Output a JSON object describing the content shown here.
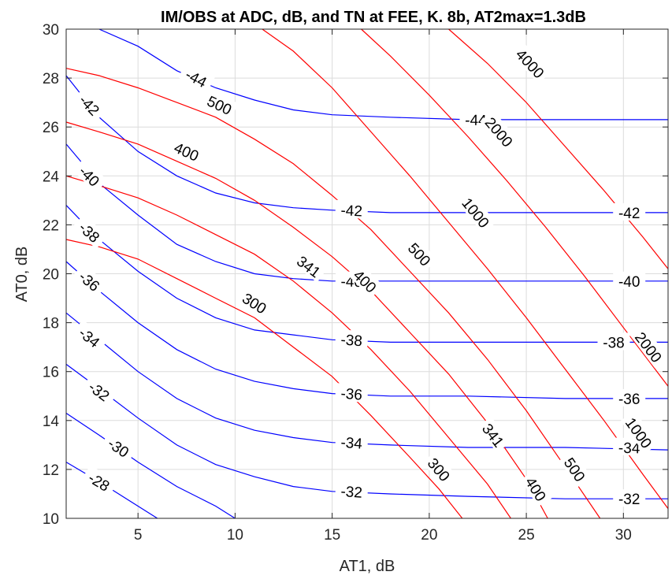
{
  "chart_data": {
    "type": "contour",
    "title": "IM/OBS at ADC, dB, and TN at FEE, K.  8b, AT2max=1.3dB",
    "xlabel": "AT1, dB",
    "ylabel": "AT0, dB",
    "xlim": [
      1.3,
      32.3
    ],
    "ylim": [
      10,
      30
    ],
    "x_ticks": [
      5,
      10,
      15,
      20,
      25,
      30
    ],
    "y_ticks": [
      10,
      12,
      14,
      16,
      18,
      20,
      22,
      24,
      26,
      28,
      30
    ],
    "grid": true,
    "colors": {
      "im_obs": "#0000ff",
      "tn": "#ff0000"
    },
    "series": [
      {
        "name": "IM/OBS at ADC, dB",
        "color": "#0000ff",
        "levels": [
          {
            "value": -28,
            "points": [
              [
                1.3,
                12.3
              ],
              [
                3.0,
                11.5
              ],
              [
                5.0,
                10.5
              ],
              [
                6.0,
                10.0
              ]
            ]
          },
          {
            "value": -30,
            "points": [
              [
                1.3,
                14.3
              ],
              [
                3.0,
                13.4
              ],
              [
                5.0,
                12.3
              ],
              [
                7.0,
                11.3
              ],
              [
                9.0,
                10.5
              ],
              [
                10.0,
                10.0
              ]
            ]
          },
          {
            "value": -32,
            "points": [
              [
                1.3,
                16.3
              ],
              [
                3.0,
                15.3
              ],
              [
                5.0,
                14.1
              ],
              [
                7.0,
                13.0
              ],
              [
                9.0,
                12.2
              ],
              [
                11.0,
                11.7
              ],
              [
                13.0,
                11.3
              ],
              [
                15.0,
                11.1
              ],
              [
                18.0,
                11.0
              ],
              [
                22.0,
                10.9
              ],
              [
                27.0,
                10.8
              ],
              [
                32.3,
                10.8
              ]
            ]
          },
          {
            "value": -34,
            "points": [
              [
                1.3,
                18.4
              ],
              [
                3.0,
                17.3
              ],
              [
                5.0,
                16.0
              ],
              [
                7.0,
                14.9
              ],
              [
                9.0,
                14.1
              ],
              [
                11.0,
                13.6
              ],
              [
                13.0,
                13.3
              ],
              [
                15.0,
                13.1
              ],
              [
                18.0,
                13.0
              ],
              [
                22.0,
                12.9
              ],
              [
                27.0,
                12.9
              ],
              [
                32.3,
                12.8
              ]
            ]
          },
          {
            "value": -36,
            "points": [
              [
                1.3,
                20.5
              ],
              [
                3.0,
                19.3
              ],
              [
                5.0,
                18.0
              ],
              [
                7.0,
                16.9
              ],
              [
                9.0,
                16.1
              ],
              [
                11.0,
                15.6
              ],
              [
                13.0,
                15.3
              ],
              [
                15.0,
                15.1
              ],
              [
                18.0,
                15.0
              ],
              [
                22.0,
                15.0
              ],
              [
                27.0,
                14.9
              ],
              [
                32.3,
                14.9
              ]
            ]
          },
          {
            "value": -38,
            "points": [
              [
                1.3,
                22.8
              ],
              [
                3.0,
                21.4
              ],
              [
                5.0,
                20.1
              ],
              [
                7.0,
                19.0
              ],
              [
                9.0,
                18.2
              ],
              [
                11.0,
                17.7
              ],
              [
                13.0,
                17.5
              ],
              [
                15.0,
                17.3
              ],
              [
                18.0,
                17.2
              ],
              [
                22.0,
                17.2
              ],
              [
                27.0,
                17.2
              ],
              [
                32.3,
                17.2
              ]
            ]
          },
          {
            "value": -40,
            "points": [
              [
                1.3,
                25.3
              ],
              [
                3.0,
                23.7
              ],
              [
                5.0,
                22.4
              ],
              [
                7.0,
                21.2
              ],
              [
                9.0,
                20.5
              ],
              [
                11.0,
                20.0
              ],
              [
                13.0,
                19.8
              ],
              [
                15.0,
                19.7
              ],
              [
                18.0,
                19.7
              ],
              [
                22.0,
                19.7
              ],
              [
                27.0,
                19.7
              ],
              [
                32.3,
                19.7
              ]
            ]
          },
          {
            "value": -42,
            "points": [
              [
                1.3,
                28.1
              ],
              [
                3.0,
                26.4
              ],
              [
                5.0,
                25.0
              ],
              [
                7.0,
                24.0
              ],
              [
                9.0,
                23.3
              ],
              [
                11.0,
                22.9
              ],
              [
                13.0,
                22.7
              ],
              [
                15.0,
                22.6
              ],
              [
                18.0,
                22.5
              ],
              [
                22.0,
                22.5
              ],
              [
                27.0,
                22.5
              ],
              [
                32.3,
                22.5
              ]
            ]
          },
          {
            "value": -44,
            "points": [
              [
                3.0,
                30.0
              ],
              [
                5.0,
                29.3
              ],
              [
                7.0,
                28.3
              ],
              [
                9.0,
                27.6
              ],
              [
                11.0,
                27.1
              ],
              [
                13.0,
                26.7
              ],
              [
                15.0,
                26.5
              ],
              [
                18.0,
                26.4
              ],
              [
                22.0,
                26.3
              ],
              [
                27.0,
                26.3
              ],
              [
                32.3,
                26.3
              ]
            ]
          }
        ]
      },
      {
        "name": "TN at FEE, K",
        "color": "#ff0000",
        "levels": [
          {
            "value": 300,
            "points": [
              [
                1.3,
                21.4
              ],
              [
                3.0,
                21.1
              ],
              [
                5.0,
                20.6
              ],
              [
                7.0,
                19.8
              ],
              [
                9.0,
                19.0
              ],
              [
                11.0,
                18.2
              ],
              [
                13.0,
                17.0
              ],
              [
                15.0,
                15.8
              ],
              [
                17.0,
                14.2
              ],
              [
                19.0,
                12.5
              ],
              [
                20.5,
                11.2
              ],
              [
                21.7,
                10.0
              ]
            ]
          },
          {
            "value": 341,
            "points": [
              [
                1.3,
                24.0
              ],
              [
                3.0,
                23.6
              ],
              [
                5.0,
                23.1
              ],
              [
                7.0,
                22.4
              ],
              [
                9.0,
                21.6
              ],
              [
                11.0,
                20.8
              ],
              [
                13.0,
                19.7
              ],
              [
                15.0,
                18.4
              ],
              [
                17.0,
                16.9
              ],
              [
                19.0,
                15.2
              ],
              [
                21.0,
                13.3
              ],
              [
                23.0,
                11.4
              ],
              [
                24.2,
                10.0
              ]
            ]
          },
          {
            "value": 400,
            "points": [
              [
                1.3,
                26.2
              ],
              [
                3.0,
                25.8
              ],
              [
                5.0,
                25.3
              ],
              [
                7.0,
                24.6
              ],
              [
                9.0,
                23.9
              ],
              [
                11.0,
                23.0
              ],
              [
                13.0,
                21.9
              ],
              [
                15.0,
                20.7
              ],
              [
                17.0,
                19.3
              ],
              [
                19.0,
                17.6
              ],
              [
                21.0,
                15.9
              ],
              [
                23.0,
                13.9
              ],
              [
                25.0,
                11.6
              ],
              [
                26.1,
                10.0
              ]
            ]
          },
          {
            "value": 500,
            "points": [
              [
                1.3,
                28.4
              ],
              [
                3.0,
                28.1
              ],
              [
                5.0,
                27.6
              ],
              [
                7.0,
                27.0
              ],
              [
                9.0,
                26.4
              ],
              [
                11.0,
                25.5
              ],
              [
                13.0,
                24.5
              ],
              [
                15.0,
                23.2
              ],
              [
                17.0,
                21.8
              ],
              [
                19.0,
                20.1
              ],
              [
                21.0,
                18.4
              ],
              [
                23.0,
                16.5
              ],
              [
                25.0,
                14.4
              ],
              [
                27.0,
                12.1
              ],
              [
                28.8,
                10.0
              ]
            ]
          },
          {
            "value": 1000,
            "points": [
              [
                11.4,
                30.0
              ],
              [
                13.0,
                29.1
              ],
              [
                15.0,
                27.6
              ],
              [
                17.0,
                25.8
              ],
              [
                19.0,
                24.0
              ],
              [
                21.0,
                22.1
              ],
              [
                23.0,
                20.2
              ],
              [
                25.0,
                18.2
              ],
              [
                27.0,
                16.1
              ],
              [
                29.0,
                14.0
              ],
              [
                31.0,
                11.8
              ],
              [
                32.3,
                10.4
              ]
            ]
          },
          {
            "value": 2000,
            "points": [
              [
                16.5,
                30.0
              ],
              [
                18.0,
                28.9
              ],
              [
                20.0,
                27.3
              ],
              [
                22.0,
                25.6
              ],
              [
                24.0,
                23.8
              ],
              [
                26.0,
                21.9
              ],
              [
                28.0,
                19.9
              ],
              [
                30.0,
                17.8
              ],
              [
                32.3,
                15.4
              ]
            ]
          },
          {
            "value": 4000,
            "points": [
              [
                21.0,
                30.0
              ],
              [
                23.0,
                28.6
              ],
              [
                25.0,
                27.0
              ],
              [
                27.0,
                25.2
              ],
              [
                29.0,
                23.4
              ],
              [
                31.0,
                21.5
              ],
              [
                32.3,
                20.2
              ]
            ]
          }
        ]
      }
    ],
    "labels": [
      {
        "text": "-28",
        "x": 3.0,
        "y": 11.5,
        "series": 0
      },
      {
        "text": "-30",
        "x": 4.0,
        "y": 12.9,
        "series": 0
      },
      {
        "text": "-32",
        "x": 3.0,
        "y": 15.2,
        "series": 0
      },
      {
        "text": "-32",
        "x": 16.0,
        "y": 11.1,
        "series": 0
      },
      {
        "text": "-32",
        "x": 30.3,
        "y": 10.8,
        "series": 0
      },
      {
        "text": "-34",
        "x": 2.5,
        "y": 17.4,
        "series": 0
      },
      {
        "text": "-34",
        "x": 16.0,
        "y": 13.1,
        "series": 0
      },
      {
        "text": "-34",
        "x": 30.3,
        "y": 12.9,
        "series": 0
      },
      {
        "text": "-36",
        "x": 2.5,
        "y": 19.7,
        "series": 0
      },
      {
        "text": "-36",
        "x": 16.0,
        "y": 15.1,
        "series": 0
      },
      {
        "text": "-36",
        "x": 30.3,
        "y": 14.9,
        "series": 0
      },
      {
        "text": "-38",
        "x": 2.5,
        "y": 21.7,
        "series": 0
      },
      {
        "text": "-38",
        "x": 16.0,
        "y": 17.3,
        "series": 0
      },
      {
        "text": "-38",
        "x": 29.5,
        "y": 17.2,
        "series": 0
      },
      {
        "text": "-40",
        "x": 2.5,
        "y": 24.0,
        "series": 0
      },
      {
        "text": "-40",
        "x": 16.0,
        "y": 19.7,
        "series": 0
      },
      {
        "text": "-40",
        "x": 30.3,
        "y": 19.7,
        "series": 0
      },
      {
        "text": "-42",
        "x": 2.5,
        "y": 26.9,
        "series": 0
      },
      {
        "text": "-42",
        "x": 16.0,
        "y": 22.6,
        "series": 0
      },
      {
        "text": "-42",
        "x": 30.3,
        "y": 22.5,
        "series": 0
      },
      {
        "text": "-44",
        "x": 8.0,
        "y": 28.0,
        "series": 0
      },
      {
        "text": "-44",
        "x": 22.4,
        "y": 26.3,
        "series": 0
      },
      {
        "text": "300",
        "x": 11.0,
        "y": 18.8,
        "series": 1
      },
      {
        "text": "300",
        "x": 20.5,
        "y": 12.0,
        "series": 1
      },
      {
        "text": "341",
        "x": 13.8,
        "y": 20.3,
        "series": 1
      },
      {
        "text": "341",
        "x": 23.3,
        "y": 13.4,
        "series": 1
      },
      {
        "text": "400",
        "x": 7.5,
        "y": 25.0,
        "series": 1
      },
      {
        "text": "400",
        "x": 16.7,
        "y": 19.7,
        "series": 1
      },
      {
        "text": "400",
        "x": 25.5,
        "y": 11.2,
        "series": 1
      },
      {
        "text": "500",
        "x": 9.2,
        "y": 26.9,
        "series": 1
      },
      {
        "text": "500",
        "x": 19.5,
        "y": 20.8,
        "series": 1
      },
      {
        "text": "500",
        "x": 27.5,
        "y": 12.0,
        "series": 1
      },
      {
        "text": "1000",
        "x": 22.4,
        "y": 22.5,
        "series": 1
      },
      {
        "text": "1000",
        "x": 30.8,
        "y": 13.5,
        "series": 1
      },
      {
        "text": "2000",
        "x": 23.6,
        "y": 25.8,
        "series": 1
      },
      {
        "text": "2000",
        "x": 31.3,
        "y": 17.0,
        "series": 1
      },
      {
        "text": "4000",
        "x": 25.2,
        "y": 28.6,
        "series": 1
      }
    ]
  }
}
